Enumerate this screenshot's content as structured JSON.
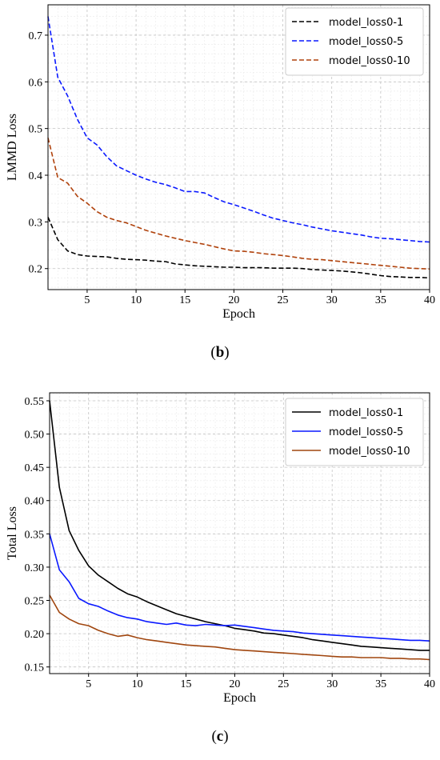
{
  "chart_data": [
    {
      "id": "b",
      "type": "line",
      "caption": {
        "open": "(",
        "letter": "b",
        "close": ")"
      },
      "xlabel": "Epoch",
      "ylabel": "LMMD Loss",
      "xlim": [
        1,
        40
      ],
      "ylim": [
        0.155,
        0.765
      ],
      "xticks": [
        5,
        10,
        15,
        20,
        25,
        30,
        35,
        40
      ],
      "yticks": [
        0.2,
        0.3,
        0.4,
        0.5,
        0.6,
        0.7
      ],
      "ytick_labels": [
        "0.2",
        "0.3",
        "0.4",
        "0.5",
        "0.6",
        "0.7"
      ],
      "grid": true,
      "legend_position": "top-right",
      "x": [
        1,
        2,
        3,
        4,
        5,
        6,
        7,
        8,
        9,
        10,
        11,
        12,
        13,
        14,
        15,
        16,
        17,
        18,
        19,
        20,
        21,
        22,
        23,
        24,
        25,
        26,
        27,
        28,
        29,
        30,
        31,
        32,
        33,
        34,
        35,
        36,
        37,
        38,
        39,
        40
      ],
      "series": [
        {
          "name": "model_loss0-1",
          "color": "#000000",
          "dash": "dashed",
          "values": [
            0.31,
            0.262,
            0.238,
            0.23,
            0.227,
            0.226,
            0.225,
            0.222,
            0.22,
            0.219,
            0.218,
            0.216,
            0.215,
            0.21,
            0.208,
            0.206,
            0.205,
            0.204,
            0.203,
            0.203,
            0.202,
            0.202,
            0.202,
            0.201,
            0.201,
            0.201,
            0.2,
            0.198,
            0.197,
            0.196,
            0.195,
            0.193,
            0.191,
            0.188,
            0.185,
            0.183,
            0.182,
            0.181,
            0.181,
            0.18
          ]
        },
        {
          "name": "model_loss0-5",
          "color": "#0a19ff",
          "dash": "dashed",
          "values": [
            0.74,
            0.61,
            0.57,
            0.52,
            0.48,
            0.465,
            0.44,
            0.42,
            0.41,
            0.4,
            0.392,
            0.385,
            0.38,
            0.373,
            0.365,
            0.365,
            0.362,
            0.352,
            0.343,
            0.337,
            0.33,
            0.323,
            0.315,
            0.308,
            0.303,
            0.298,
            0.294,
            0.289,
            0.285,
            0.281,
            0.278,
            0.275,
            0.272,
            0.268,
            0.265,
            0.264,
            0.262,
            0.26,
            0.258,
            0.257
          ]
        },
        {
          "name": "model_loss0-10",
          "color": "#b0420c",
          "dash": "dashed",
          "values": [
            0.48,
            0.395,
            0.383,
            0.355,
            0.34,
            0.322,
            0.31,
            0.303,
            0.298,
            0.29,
            0.282,
            0.276,
            0.27,
            0.265,
            0.26,
            0.256,
            0.252,
            0.247,
            0.242,
            0.238,
            0.237,
            0.235,
            0.232,
            0.23,
            0.228,
            0.225,
            0.222,
            0.22,
            0.219,
            0.217,
            0.215,
            0.213,
            0.211,
            0.209,
            0.207,
            0.205,
            0.203,
            0.201,
            0.2,
            0.199
          ]
        }
      ]
    },
    {
      "id": "c",
      "type": "line",
      "caption": {
        "open": "(",
        "letter": "c",
        "close": ")"
      },
      "xlabel": "Epoch",
      "ylabel": "Total Loss",
      "xlim": [
        1,
        40
      ],
      "ylim": [
        0.14,
        0.562
      ],
      "xticks": [
        5,
        10,
        15,
        20,
        25,
        30,
        35,
        40
      ],
      "yticks": [
        0.15,
        0.2,
        0.25,
        0.3,
        0.35,
        0.4,
        0.45,
        0.5,
        0.55
      ],
      "ytick_labels": [
        "0.15",
        "0.20",
        "0.25",
        "0.30",
        "0.35",
        "0.40",
        "0.45",
        "0.50",
        "0.55"
      ],
      "grid": true,
      "legend_position": "top-right",
      "x": [
        1,
        2,
        3,
        4,
        5,
        6,
        7,
        8,
        9,
        10,
        11,
        12,
        13,
        14,
        15,
        16,
        17,
        18,
        19,
        20,
        21,
        22,
        23,
        24,
        25,
        26,
        27,
        28,
        29,
        30,
        31,
        32,
        33,
        34,
        35,
        36,
        37,
        38,
        39,
        40
      ],
      "series": [
        {
          "name": "model_loss0-1",
          "color": "#000000",
          "dash": "solid",
          "values": [
            0.55,
            0.42,
            0.355,
            0.325,
            0.302,
            0.288,
            0.278,
            0.268,
            0.26,
            0.255,
            0.248,
            0.242,
            0.236,
            0.23,
            0.226,
            0.222,
            0.218,
            0.215,
            0.212,
            0.208,
            0.206,
            0.204,
            0.201,
            0.2,
            0.198,
            0.196,
            0.194,
            0.191,
            0.189,
            0.187,
            0.185,
            0.183,
            0.181,
            0.18,
            0.179,
            0.178,
            0.177,
            0.176,
            0.175,
            0.175
          ]
        },
        {
          "name": "model_loss0-5",
          "color": "#0a19ff",
          "dash": "solid",
          "values": [
            0.35,
            0.296,
            0.278,
            0.253,
            0.245,
            0.241,
            0.234,
            0.228,
            0.224,
            0.222,
            0.218,
            0.216,
            0.214,
            0.216,
            0.213,
            0.212,
            0.214,
            0.213,
            0.212,
            0.213,
            0.211,
            0.209,
            0.207,
            0.205,
            0.204,
            0.203,
            0.201,
            0.2,
            0.199,
            0.198,
            0.197,
            0.196,
            0.195,
            0.194,
            0.193,
            0.192,
            0.191,
            0.19,
            0.19,
            0.189
          ]
        },
        {
          "name": "model_loss0-10",
          "color": "#a0460f",
          "dash": "solid",
          "values": [
            0.258,
            0.232,
            0.222,
            0.215,
            0.212,
            0.205,
            0.2,
            0.196,
            0.198,
            0.194,
            0.191,
            0.189,
            0.187,
            0.185,
            0.183,
            0.182,
            0.181,
            0.18,
            0.178,
            0.176,
            0.175,
            0.174,
            0.173,
            0.172,
            0.171,
            0.17,
            0.169,
            0.168,
            0.167,
            0.166,
            0.165,
            0.165,
            0.164,
            0.164,
            0.164,
            0.163,
            0.163,
            0.162,
            0.162,
            0.161
          ]
        }
      ]
    }
  ]
}
